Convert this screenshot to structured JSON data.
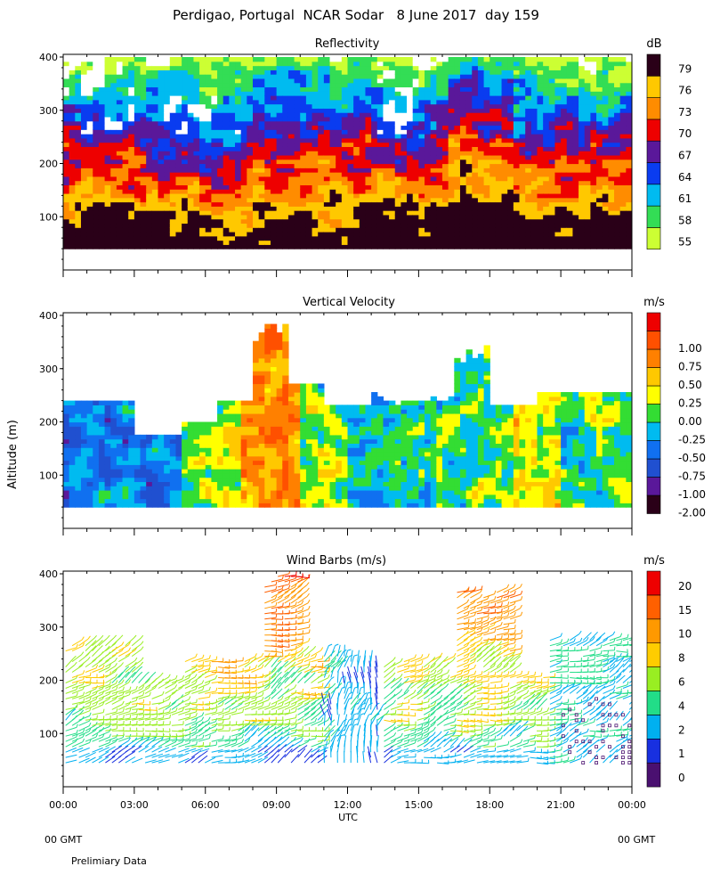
{
  "title": "Perdigao, Portugal  NCAR Sodar   8 June 2017  day 159",
  "y_axis_label": "Altitude (m)",
  "footer": {
    "left_tz": "00 GMT",
    "right_tz": "00 GMT",
    "note": "Prelimiary Data"
  },
  "chart_data": [
    {
      "type": "heatmap",
      "title": "Reflectivity",
      "xlabel": "",
      "ylabel": "Altitude (m)",
      "x_ticks": [
        "00:00",
        "03:00",
        "06:00",
        "09:00",
        "12:00",
        "15:00",
        "18:00",
        "21:00",
        "00:00"
      ],
      "xlim_hours": [
        0,
        24
      ],
      "ylim": [
        0,
        400
      ],
      "y_ticks": [
        100,
        200,
        300,
        400
      ],
      "colorbar": {
        "unit": "dB",
        "labels": [
          "55",
          "58",
          "61",
          "64",
          "67",
          "70",
          "73",
          "76",
          "79"
        ],
        "colors": [
          "#ccff33",
          "#33dd55",
          "#00bbf0",
          "#0a3cf0",
          "#5a189a",
          "#ee0000",
          "#ff8c00",
          "#ffc800",
          "#2a0018"
        ]
      },
      "data_range_m": [
        40,
        400
      ],
      "description_levels": "high reflectivity (73-79 dB) near surface, decreasing with altitude; low values (55-61) aloft"
    },
    {
      "type": "heatmap",
      "title": "Vertical Velocity",
      "xlabel": "",
      "ylabel": "Altitude (m)",
      "x_ticks": [
        "00:00",
        "03:00",
        "06:00",
        "09:00",
        "12:00",
        "15:00",
        "18:00",
        "21:00",
        "00:00"
      ],
      "xlim_hours": [
        0,
        24
      ],
      "ylim": [
        0,
        400
      ],
      "y_ticks": [
        100,
        200,
        300,
        400
      ],
      "colorbar": {
        "unit": "m/s",
        "labels": [
          "-2.00",
          "-1.00",
          "-0.75",
          "-0.50",
          "-0.25",
          "0.00",
          "0.25",
          "0.50",
          "0.75",
          "1.00"
        ],
        "colors": [
          "#2a0018",
          "#5a189a",
          "#2050d0",
          "#1070f0",
          "#00bbf0",
          "#33dd33",
          "#ffff00",
          "#ffc800",
          "#ff8000",
          "#ff5000",
          "#ee0000"
        ]
      }
    },
    {
      "type": "scatter",
      "title": "Wind Barbs (m/s)",
      "xlabel": "UTC",
      "ylabel": "Altitude (m)",
      "x_ticks": [
        "00:00",
        "03:00",
        "06:00",
        "09:00",
        "12:00",
        "15:00",
        "18:00",
        "21:00",
        "00:00"
      ],
      "xlim_hours": [
        0,
        24
      ],
      "ylim": [
        0,
        400
      ],
      "y_ticks": [
        100,
        200,
        300,
        400
      ],
      "colorbar": {
        "unit": "m/s",
        "labels": [
          "0",
          "1",
          "2",
          "4",
          "6",
          "8",
          "10",
          "15",
          "20"
        ],
        "colors": [
          "#4a1070",
          "#1830e0",
          "#00b0f0",
          "#22dd88",
          "#99ee22",
          "#ffcc00",
          "#ff9900",
          "#ff6000",
          "#ee0000"
        ]
      }
    }
  ]
}
